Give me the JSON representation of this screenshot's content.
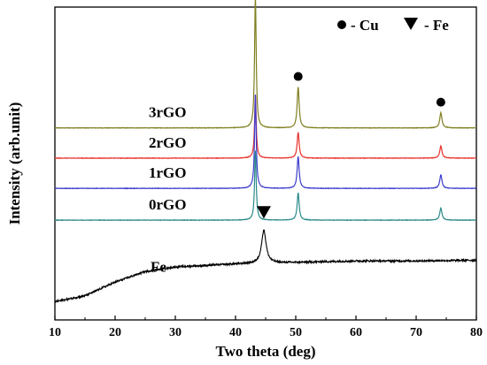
{
  "chart_data": {
    "type": "line",
    "title": "",
    "xlabel": "Two theta (deg)",
    "ylabel": "Intensity (arb.unit)",
    "xlim": [
      10,
      80
    ],
    "x_ticks": [
      "10",
      "20",
      "30",
      "40",
      "50",
      "60",
      "70",
      "80"
    ],
    "grid": false,
    "legend": {
      "placement": "top-right",
      "entries": [
        {
          "marker": "circle",
          "label": "- Cu"
        },
        {
          "marker": "triangle-down",
          "label": "- Fe"
        }
      ]
    },
    "series": [
      {
        "name": "3rGO",
        "color": "#7f7f1f",
        "baseline": 0.8,
        "peaks": [
          {
            "x": 43.3,
            "height": 0.87,
            "width": 0.16
          },
          {
            "x": 50.4,
            "height": 0.27,
            "width": 0.2
          },
          {
            "x": 74.1,
            "height": 0.1,
            "width": 0.22
          }
        ]
      },
      {
        "name": "2rGO",
        "color": "#e8302a",
        "baseline": 0.6,
        "peaks": [
          {
            "x": 43.3,
            "height": 0.42,
            "width": 0.16
          },
          {
            "x": 50.4,
            "height": 0.17,
            "width": 0.2
          },
          {
            "x": 74.1,
            "height": 0.08,
            "width": 0.22
          }
        ]
      },
      {
        "name": "1rGO",
        "color": "#3c3ccc",
        "baseline": 0.4,
        "peaks": [
          {
            "x": 43.3,
            "height": 0.62,
            "width": 0.16
          },
          {
            "x": 50.4,
            "height": 0.21,
            "width": 0.2
          },
          {
            "x": 74.1,
            "height": 0.09,
            "width": 0.22
          }
        ]
      },
      {
        "name": "0rGO",
        "color": "#2a8a8a",
        "baseline": 0.19,
        "peaks": [
          {
            "x": 43.3,
            "height": 0.46,
            "width": 0.16
          },
          {
            "x": 50.4,
            "height": 0.18,
            "width": 0.2
          },
          {
            "x": 74.1,
            "height": 0.08,
            "width": 0.22
          }
        ]
      },
      {
        "name": "Fe",
        "color": "#000000",
        "baseline": -0.35,
        "background": [
          {
            "x": 10,
            "y": -0.35
          },
          {
            "x": 15,
            "y": -0.31
          },
          {
            "x": 20,
            "y": -0.22
          },
          {
            "x": 25,
            "y": -0.15
          },
          {
            "x": 30,
            "y": -0.12
          },
          {
            "x": 35,
            "y": -0.11
          },
          {
            "x": 40,
            "y": -0.1
          },
          {
            "x": 50,
            "y": -0.09
          },
          {
            "x": 60,
            "y": -0.08
          },
          {
            "x": 70,
            "y": -0.08
          },
          {
            "x": 80,
            "y": -0.075
          }
        ],
        "peaks": [
          {
            "x": 44.7,
            "height": 0.22,
            "width": 0.45
          }
        ]
      }
    ],
    "peak_markers": [
      {
        "type": "circle",
        "x": 43.3
      },
      {
        "type": "circle",
        "x": 50.4
      },
      {
        "type": "circle",
        "x": 74.1
      },
      {
        "type": "triangle-down",
        "x": 44.7
      }
    ]
  }
}
